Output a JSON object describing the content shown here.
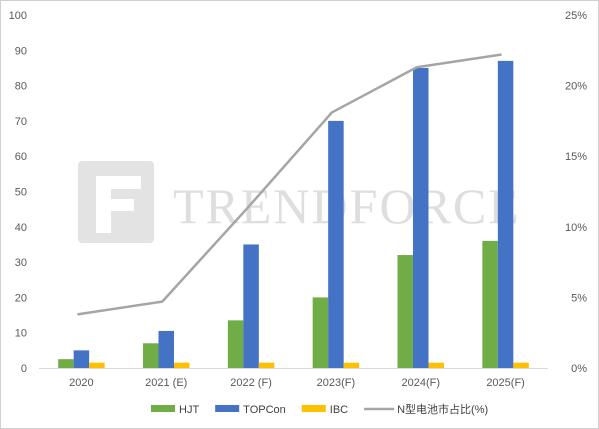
{
  "watermark": {
    "text": "TRENDFORCE"
  },
  "chart_data": {
    "type": "bar",
    "title": "",
    "categories": [
      "2020",
      "2021 (E)",
      "2022 (F)",
      "2023(F)",
      "2024(F)",
      "2025(F)"
    ],
    "series": [
      {
        "name": "HJT",
        "type": "bar",
        "axis": "left",
        "color": "#70ad47",
        "values": [
          2.5,
          7,
          13.5,
          20,
          32,
          36
        ]
      },
      {
        "name": "TOPCon",
        "type": "bar",
        "axis": "left",
        "color": "#4472c4",
        "values": [
          5,
          10.5,
          35,
          70,
          85,
          87
        ]
      },
      {
        "name": "IBC",
        "type": "bar",
        "axis": "left",
        "color": "#ffc000",
        "values": [
          1.5,
          1.5,
          1.5,
          1.5,
          1.5,
          1.5
        ]
      },
      {
        "name": "N型电池市占比(%)",
        "type": "line",
        "axis": "right",
        "color": "#a5a5a5",
        "values": [
          3.8,
          4.7,
          11.3,
          18.1,
          21.3,
          22.2
        ]
      }
    ],
    "y_left": {
      "min": 0,
      "max": 100,
      "ticks": [
        "0",
        "10",
        "20",
        "30",
        "40",
        "50",
        "60",
        "70",
        "80",
        "90",
        "100"
      ]
    },
    "y_right": {
      "min": 0,
      "max": 25,
      "unit": "%",
      "ticks": [
        "0%",
        "5%",
        "10%",
        "15%",
        "20%",
        "25%"
      ]
    },
    "grid": false,
    "legend_position": "bottom"
  }
}
